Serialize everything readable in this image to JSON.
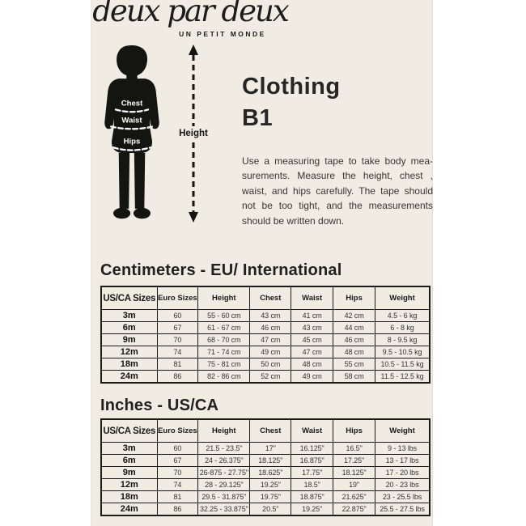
{
  "brand": {
    "name": "deux par deux",
    "tagline": "UN PETIT MONDE"
  },
  "title": {
    "line1": "Clothing",
    "line2": "B1"
  },
  "figure": {
    "chest_label": "Chest",
    "waist_label": "Waist",
    "hips_label": "Hips",
    "height_label": "Height"
  },
  "intro": {
    "lines": [
      "Use a measuring tape to take body mea-",
      "surements. Measure the height, chest ,",
      "waist, and hips carefully. The tape should",
      "not be too tight, and the measurements",
      "should be written down."
    ]
  },
  "sections": [
    {
      "heading": "Centimeters - EU/ International",
      "columns": [
        "US/CA Sizes",
        "Euro Sizes",
        "Height",
        "Chest",
        "Waist",
        "Hips",
        "Weight"
      ],
      "rows": [
        [
          "3m",
          "60",
          "55 - 60 cm",
          "43 cm",
          "41 cm",
          "42 cm",
          "4.5 - 6 kg"
        ],
        [
          "6m",
          "67",
          "61 - 67 cm",
          "46 cm",
          "43 cm",
          "44 cm",
          "6 - 8 kg"
        ],
        [
          "9m",
          "70",
          "68 - 70 cm",
          "47 cm",
          "45 cm",
          "46 cm",
          "8 - 9.5 kg"
        ],
        [
          "12m",
          "74",
          "71 - 74 cm",
          "49 cm",
          "47 cm",
          "48 cm",
          "9.5 - 10.5 kg"
        ],
        [
          "18m",
          "81",
          "75 - 81 cm",
          "50 cm",
          "48 cm",
          "55 cm",
          "10.5 - 11.5 kg"
        ],
        [
          "24m",
          "86",
          "82 - 86 cm",
          "52 cm",
          "49 cm",
          "58 cm",
          "11.5 - 12.5 kg"
        ]
      ]
    },
    {
      "heading": "Inches - US/CA",
      "columns": [
        "US/CA Sizes",
        "Euro Sizes",
        "Height",
        "Chest",
        "Waist",
        "Hips",
        "Weight"
      ],
      "rows": [
        [
          "3m",
          "60",
          "21.5 - 23.5\"",
          "17\"",
          "16.125\"",
          "16.5\"",
          "9 - 13 lbs"
        ],
        [
          "6m",
          "67",
          "24 - 26.375\"",
          "18.125\"",
          "16.875\"",
          "17.25\"",
          "13 - 17 lbs"
        ],
        [
          "9m",
          "70",
          "26-875 - 27.75\"",
          "18.625\"",
          "17.75\"",
          "18.125\"",
          "17 - 20 lbs"
        ],
        [
          "12m",
          "74",
          "28 - 29.125\"",
          "19.25\"",
          "18.5\"",
          "19\"",
          "20 - 23 lbs"
        ],
        [
          "18m",
          "81",
          "29.5 - 31.875\"",
          "19.75\"",
          "18.875\"",
          "21.625\"",
          "23 - 25.5 lbs"
        ],
        [
          "24m",
          "86",
          "32.25 - 33.875\"",
          "20.5\"",
          "19.25\"",
          "22.875\"",
          "25.5 - 27.5 lbs"
        ]
      ]
    }
  ],
  "colors": {
    "card_background": "#f0ece4",
    "ink": "#1b1a17",
    "silhouette": "#141411",
    "body_text": "#39362f",
    "table_text": "#36332d"
  }
}
